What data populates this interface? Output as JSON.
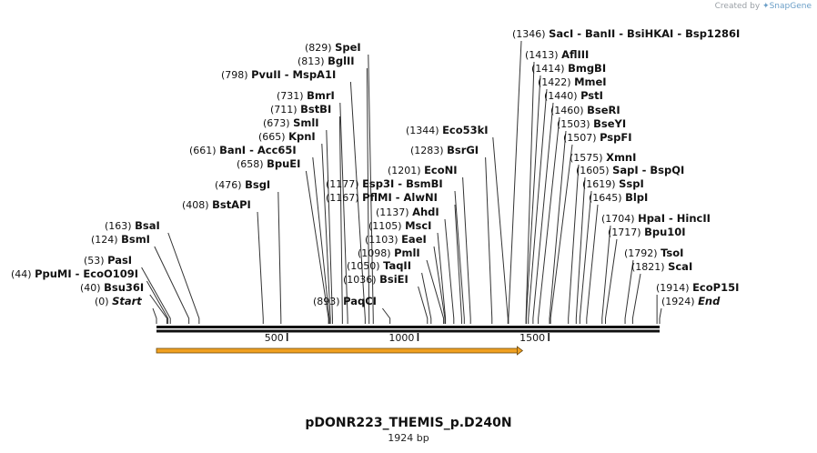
{
  "credit": {
    "prefix": "Created by",
    "brand": "SnapGene",
    "icon": "snapgene-logo-icon"
  },
  "sequence": {
    "name": "pDONR223_THEMIS_p.D240N",
    "length_label": "1924 bp",
    "length": 1924
  },
  "ruler": {
    "ticks": [
      500,
      1000,
      1500
    ]
  },
  "feature": {
    "start": 0,
    "end": 1400,
    "color": "#f0a020",
    "direction": "forward"
  },
  "sites": [
    {
      "pos": 0,
      "pos_label": "(0)",
      "name": "Start",
      "italic": true
    },
    {
      "pos": 40,
      "pos_label": "(40)",
      "name": "Bsu36I"
    },
    {
      "pos": 44,
      "pos_label": "(44)",
      "name": "PpuMI  - EcoO109I"
    },
    {
      "pos": 53,
      "pos_label": "(53)",
      "name": "PasI"
    },
    {
      "pos": 124,
      "pos_label": "(124)",
      "name": "BsmI"
    },
    {
      "pos": 163,
      "pos_label": "(163)",
      "name": "BsaI"
    },
    {
      "pos": 408,
      "pos_label": "(408)",
      "name": "BstAPI"
    },
    {
      "pos": 476,
      "pos_label": "(476)",
      "name": "BsgI"
    },
    {
      "pos": 658,
      "pos_label": "(658)",
      "name": "BpuEI"
    },
    {
      "pos": 661,
      "pos_label": "(661)",
      "name": "BanI  - Acc65I"
    },
    {
      "pos": 665,
      "pos_label": "(665)",
      "name": "KpnI"
    },
    {
      "pos": 673,
      "pos_label": "(673)",
      "name": "SmlI"
    },
    {
      "pos": 711,
      "pos_label": "(711)",
      "name": "BstBI"
    },
    {
      "pos": 731,
      "pos_label": "(731)",
      "name": "BmrI"
    },
    {
      "pos": 798,
      "pos_label": "(798)",
      "name": "PvuII  - MspA1I"
    },
    {
      "pos": 813,
      "pos_label": "(813)",
      "name": "BglII"
    },
    {
      "pos": 829,
      "pos_label": "(829)",
      "name": "SpeI"
    },
    {
      "pos": 893,
      "pos_label": "(893)",
      "name": "PaqCI"
    },
    {
      "pos": 1036,
      "pos_label": "(1036)",
      "name": "BsiEI"
    },
    {
      "pos": 1050,
      "pos_label": "(1050)",
      "name": "TaqII"
    },
    {
      "pos": 1098,
      "pos_label": "(1098)",
      "name": "PmlI"
    },
    {
      "pos": 1103,
      "pos_label": "(1103)",
      "name": "EaeI"
    },
    {
      "pos": 1105,
      "pos_label": "(1105)",
      "name": "MscI"
    },
    {
      "pos": 1137,
      "pos_label": "(1137)",
      "name": "AhdI"
    },
    {
      "pos": 1167,
      "pos_label": "(1167)",
      "name": "PflMI  - AlwNI"
    },
    {
      "pos": 1177,
      "pos_label": "(1177)",
      "name": "Esp3I  - BsmBI"
    },
    {
      "pos": 1201,
      "pos_label": "(1201)",
      "name": "EcoNI"
    },
    {
      "pos": 1283,
      "pos_label": "(1283)",
      "name": "BsrGI"
    },
    {
      "pos": 1344,
      "pos_label": "(1344)",
      "name": "Eco53kI"
    },
    {
      "pos": 1346,
      "pos_label": "(1346)",
      "name": "SacI  - BanII  - BsiHKAI  - Bsp1286I"
    },
    {
      "pos": 1413,
      "pos_label": "(1413)",
      "name": "AflIII"
    },
    {
      "pos": 1414,
      "pos_label": "(1414)",
      "name": "BmgBI"
    },
    {
      "pos": 1422,
      "pos_label": "(1422)",
      "name": "MmeI"
    },
    {
      "pos": 1440,
      "pos_label": "(1440)",
      "name": "PstI"
    },
    {
      "pos": 1460,
      "pos_label": "(1460)",
      "name": "BseRI"
    },
    {
      "pos": 1503,
      "pos_label": "(1503)",
      "name": "BseYI"
    },
    {
      "pos": 1507,
      "pos_label": "(1507)",
      "name": "PspFI"
    },
    {
      "pos": 1575,
      "pos_label": "(1575)",
      "name": "XmnI"
    },
    {
      "pos": 1605,
      "pos_label": "(1605)",
      "name": "SapI  - BspQI"
    },
    {
      "pos": 1619,
      "pos_label": "(1619)",
      "name": "SspI"
    },
    {
      "pos": 1645,
      "pos_label": "(1645)",
      "name": "BlpI"
    },
    {
      "pos": 1704,
      "pos_label": "(1704)",
      "name": "HpaI  - HincII"
    },
    {
      "pos": 1717,
      "pos_label": "(1717)",
      "name": "Bpu10I"
    },
    {
      "pos": 1792,
      "pos_label": "(1792)",
      "name": "TsoI"
    },
    {
      "pos": 1821,
      "pos_label": "(1821)",
      "name": "ScaI"
    },
    {
      "pos": 1914,
      "pos_label": "(1914)",
      "name": "EcoP15I"
    },
    {
      "pos": 1924,
      "pos_label": "(1924)",
      "name": "End",
      "italic": true
    }
  ]
}
